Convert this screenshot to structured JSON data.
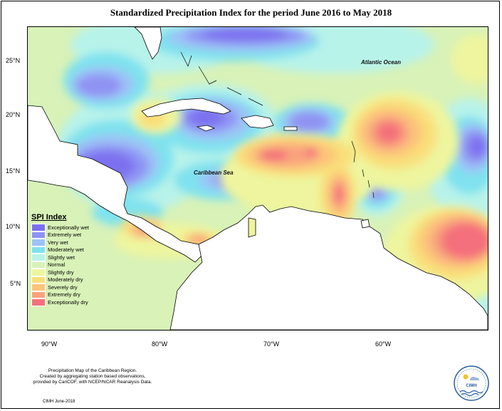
{
  "title": "Standardized Precipitation Index for the period June 2016 to May 2018",
  "lat_ticks": [
    "25°N",
    "20°N",
    "15°N",
    "10°N",
    "5°N"
  ],
  "lon_ticks": [
    "90°W",
    "80°W",
    "70°W",
    "60°W"
  ],
  "labels": {
    "atlantic": "Atlantic Ocean",
    "caribbean": "Caribbean Sea"
  },
  "legend": {
    "title": "SPI Index",
    "items": [
      {
        "label": "Exceptionally wet",
        "color": "#7c6ff0"
      },
      {
        "label": "Extremely wet",
        "color": "#8f93f3"
      },
      {
        "label": "Very wet",
        "color": "#9cc2f6"
      },
      {
        "label": "Moderately wet",
        "color": "#7fe2ee"
      },
      {
        "label": "Slightly wet",
        "color": "#b8f3ea"
      },
      {
        "label": "Normal",
        "color": "#d8f2b8"
      },
      {
        "label": "Slightly dry",
        "color": "#eef59e"
      },
      {
        "label": "Moderately dry",
        "color": "#f9df7a"
      },
      {
        "label": "Severely dry",
        "color": "#fbc57a"
      },
      {
        "label": "Extremely dry",
        "color": "#f9a37d"
      },
      {
        "label": "Exceptionally dry",
        "color": "#f4707c"
      }
    ]
  },
  "credit": {
    "line1": "Precipitation Map of the Caribbean Region.",
    "line2": "Created by aggregating station based observations,",
    "line3": "provided by CariCOF, with NCEP/NCAR Reanalysis Data.",
    "date": "CIMH June-2018"
  },
  "logo_text": "CIMH"
}
